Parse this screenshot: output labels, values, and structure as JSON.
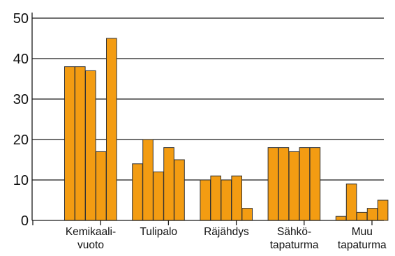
{
  "chart_data": {
    "type": "bar",
    "title": "",
    "xlabel": "",
    "ylabel": "",
    "ylim": [
      0,
      50
    ],
    "yticks": [
      "0",
      "10",
      "20",
      "30",
      "40",
      "50"
    ],
    "grid": true,
    "legend": "none",
    "bar_color": "#F39C12",
    "bar_outline": "#333333",
    "categories": [
      {
        "lines": [
          "Kemikaali-",
          "vuoto"
        ],
        "values": [
          38,
          38,
          37,
          17,
          45
        ]
      },
      {
        "lines": [
          "Tulipalo"
        ],
        "values": [
          14,
          20,
          12,
          18,
          15
        ]
      },
      {
        "lines": [
          "Räjähdys"
        ],
        "values": [
          10,
          11,
          10,
          11,
          3
        ]
      },
      {
        "lines": [
          "Sähkö-",
          "tapaturma"
        ],
        "values": [
          18,
          18,
          17,
          18,
          18
        ]
      },
      {
        "lines": [
          "Muu",
          "tapaturma"
        ],
        "values": [
          1,
          9,
          2,
          3,
          5
        ]
      }
    ]
  }
}
